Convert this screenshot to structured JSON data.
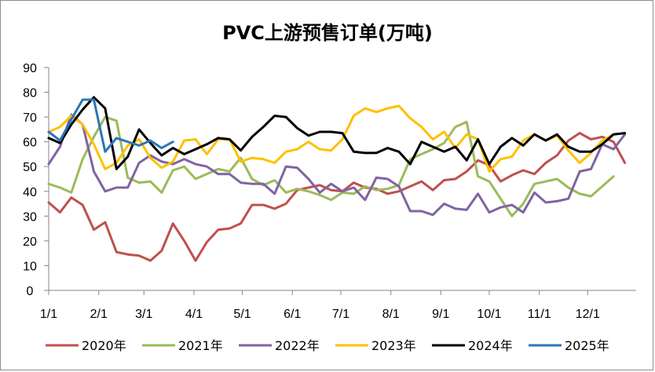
{
  "chart_data": {
    "type": "line",
    "title": "PVC上游预售订单(万吨)",
    "ylim": [
      0,
      90
    ],
    "yticks": [
      0,
      10,
      20,
      30,
      40,
      50,
      60,
      70,
      80,
      90
    ],
    "xlim": [
      0,
      52
    ],
    "xticks": [
      {
        "label": "1/1",
        "week": 0
      },
      {
        "label": "2/1",
        "week": 4.43
      },
      {
        "label": "3/1",
        "week": 8.43
      },
      {
        "label": "4/1",
        "week": 12.86
      },
      {
        "label": "5/1",
        "week": 17.14
      },
      {
        "label": "6/1",
        "week": 21.57
      },
      {
        "label": "7/1",
        "week": 25.86
      },
      {
        "label": "8/1",
        "week": 30.29
      },
      {
        "label": "9/1",
        "week": 34.71
      },
      {
        "label": "10/1",
        "week": 39
      },
      {
        "label": "11/1",
        "week": 43.43
      },
      {
        "label": "12/1",
        "week": 47.71
      }
    ],
    "legend_position": "bottom",
    "series": [
      {
        "name": "2020年",
        "color": "#c0504d",
        "values": [
          35.5,
          31.5,
          37.5,
          34.5,
          24.5,
          27.5,
          15.5,
          14.5,
          14,
          12,
          16,
          27,
          20,
          12,
          19.5,
          24.5,
          25,
          27,
          34.5,
          34.5,
          33,
          35,
          40.5,
          41.5,
          42.5,
          40.5,
          40,
          43.5,
          41.5,
          41,
          39,
          40,
          42,
          44,
          40.5,
          44.5,
          45,
          48,
          52.5,
          50.5,
          44,
          46.5,
          48.5,
          47,
          51.5,
          54.5,
          60.5,
          63.5,
          61,
          62,
          60,
          51.5
        ]
      },
      {
        "name": "2021年",
        "color": "#9bbb59",
        "values": [
          43,
          41.5,
          39.5,
          53,
          62,
          70,
          68.5,
          45.5,
          43.5,
          44,
          39.5,
          48.5,
          50,
          45,
          47,
          49,
          48,
          53.5,
          45,
          42.5,
          44.5,
          39.5,
          41,
          40,
          38.5,
          36.5,
          39.5,
          39,
          42,
          40.5,
          41,
          42.5,
          53,
          55,
          57,
          59.5,
          66,
          68,
          46,
          44,
          37,
          30,
          35,
          43,
          44,
          45,
          41.5,
          39,
          38,
          42,
          46
        ]
      },
      {
        "name": "2022年",
        "color": "#8064a2",
        "values": [
          51,
          58,
          71,
          67,
          48,
          40,
          41.5,
          41.5,
          51.5,
          54.5,
          52,
          51,
          53,
          51,
          50,
          47,
          47,
          43.5,
          43,
          43,
          39,
          50,
          49.5,
          45,
          39.5,
          43,
          40,
          41.5,
          36.5,
          45.5,
          45,
          42,
          32,
          32,
          30.5,
          35,
          33,
          32.5,
          39,
          31.5,
          33.5,
          34.5,
          31.5,
          39.5,
          35.5,
          36,
          37,
          48,
          49,
          59,
          57,
          63
        ]
      },
      {
        "name": "2023年",
        "color": "#ffc000",
        "values": [
          64,
          66,
          70.5,
          67,
          59,
          49,
          51.5,
          58.5,
          61,
          53.5,
          49.5,
          52,
          60.5,
          61,
          55,
          61,
          61,
          52,
          53.5,
          53,
          51.5,
          56,
          57,
          60,
          57,
          56.5,
          61,
          70.5,
          73.5,
          72,
          73.5,
          74.5,
          69.5,
          66,
          61,
          64,
          57.5,
          63,
          61,
          48,
          53,
          54,
          60.5,
          63,
          60.5,
          62.5,
          56.5,
          51.5,
          55.5,
          60.5,
          63
        ]
      },
      {
        "name": "2024年",
        "color": "#000000",
        "values": [
          61.5,
          59.5,
          67,
          73,
          78,
          73.5,
          49,
          54,
          65,
          59.5,
          54.5,
          57.5,
          55,
          57,
          59,
          61.5,
          61,
          56.5,
          62,
          66,
          70.5,
          70,
          65.5,
          62.5,
          64,
          64,
          63.5,
          56,
          55.5,
          55.5,
          57.5,
          56,
          51,
          60,
          58,
          56,
          58,
          52.5,
          61,
          51,
          58,
          61.5,
          58.5,
          63,
          60.5,
          63,
          58,
          56,
          56,
          59,
          63,
          63.5
        ]
      },
      {
        "name": "2025年",
        "color": "#2e75b6",
        "values": [
          64,
          60.5,
          69,
          77,
          77,
          56,
          61.5,
          60,
          58.5,
          60.5,
          57.5,
          60
        ]
      }
    ]
  }
}
